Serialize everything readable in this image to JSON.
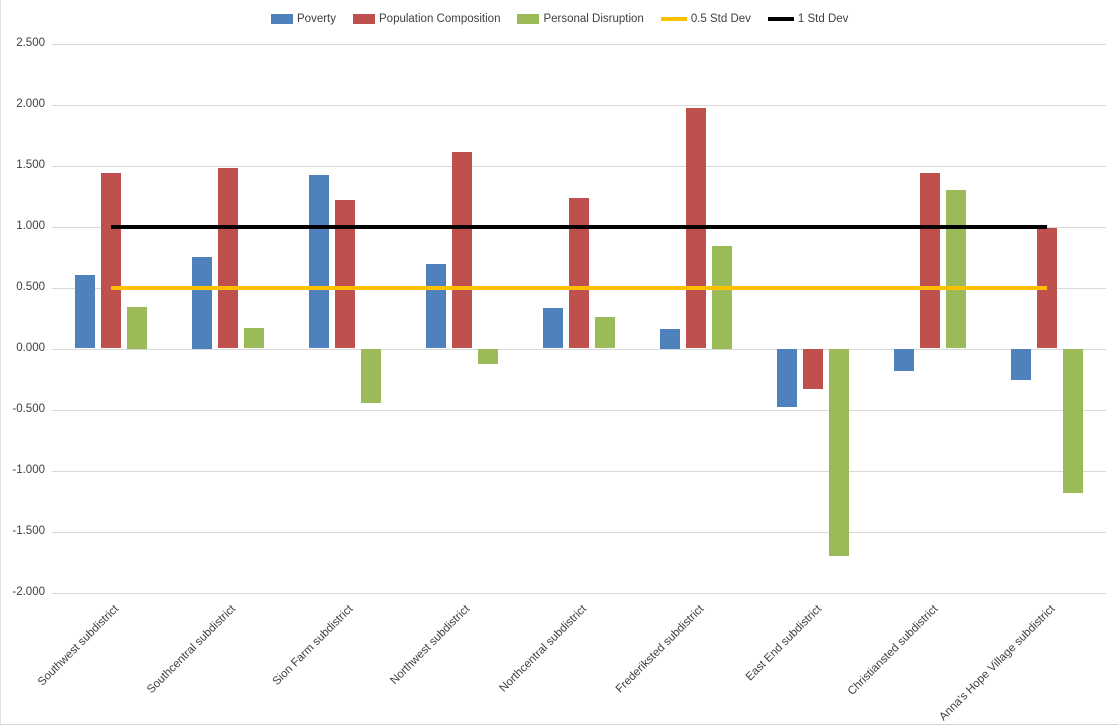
{
  "chart_data": {
    "type": "bar",
    "title": "",
    "xlabel": "",
    "ylabel": "",
    "legend_position": "top",
    "grid": true,
    "categories": [
      "Southwest subdistrict",
      "Southcentral subdistrict",
      "Sion Farm subdistrict",
      "Northwest subdistrict",
      "Northcentral subdistrict",
      "Frederiksted subdistrict",
      "East End subdistrict",
      "Christiansted subdistrict",
      "Anna's Hope Village subdistrict"
    ],
    "series": [
      {
        "name": "Poverty",
        "kind": "bar",
        "color": "#4F81BD",
        "values": [
          0.6,
          0.75,
          1.42,
          0.69,
          0.33,
          0.16,
          -0.48,
          -0.18,
          -0.26
        ]
      },
      {
        "name": "Population Composition",
        "kind": "bar",
        "color": "#C0504D",
        "values": [
          1.44,
          1.48,
          1.22,
          1.61,
          1.23,
          1.97,
          -0.33,
          1.44,
          0.99
        ]
      },
      {
        "name": "Personal Disruption",
        "kind": "bar",
        "color": "#9BBB59",
        "values": [
          0.34,
          0.17,
          -0.45,
          -0.13,
          0.26,
          0.84,
          -1.7,
          1.3,
          -1.18
        ]
      },
      {
        "name": "0.5 Std Dev",
        "kind": "line",
        "color": "#FFC000",
        "constant_value": 0.5
      },
      {
        "name": "1 Std Dev",
        "kind": "line",
        "color": "#000000",
        "constant_value": 1.0
      }
    ],
    "y_axis": {
      "min": -2.0,
      "max": 2.5,
      "step": 0.5,
      "tick_labels": [
        "2.500",
        "2.000",
        "1.500",
        "1.000",
        "0.500",
        "0.000",
        "-0.500",
        "-1.000",
        "-1.500",
        "-2.000"
      ]
    },
    "colors": {
      "gridline": "#d9d9d9",
      "axis_text": "#3f3f3f",
      "background": "#ffffff"
    }
  }
}
